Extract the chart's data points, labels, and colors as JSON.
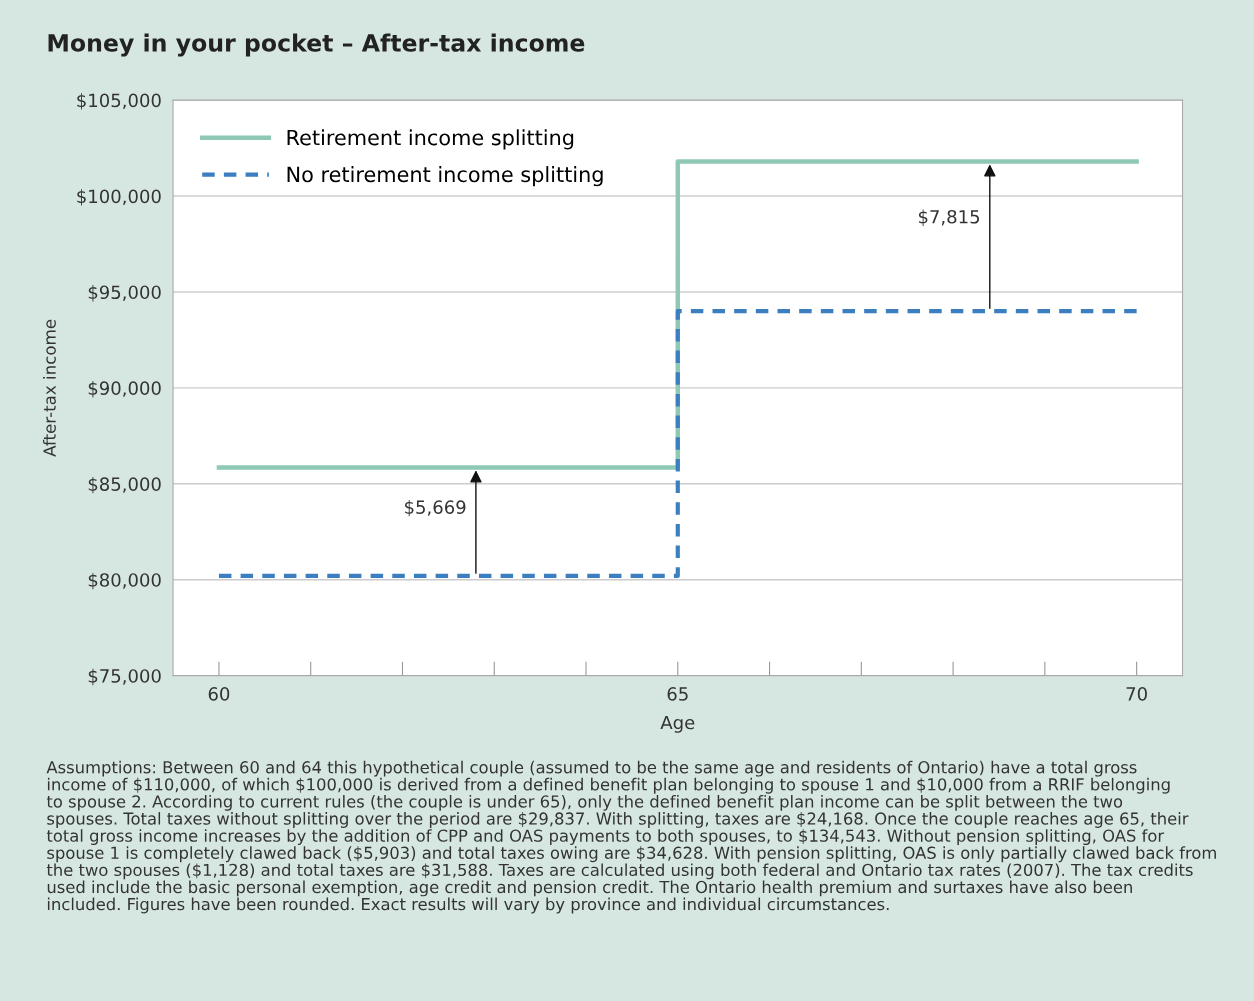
{
  "chart_data": {
    "type": "step",
    "title": "Money in your pocket – After-tax income",
    "xlabel": "Age",
    "ylabel": "After-tax income",
    "x": [
      60,
      65,
      70
    ],
    "series": [
      {
        "name": "Retirement income splitting",
        "color": "#8fc9b5",
        "values": [
          85850,
          101800,
          101800
        ],
        "line_style": "solid"
      },
      {
        "name": "No retirement income splitting",
        "color": "#3b7fc0",
        "values": [
          80200,
          94000,
          94000
        ],
        "line_style": "dashed"
      }
    ],
    "xlim": [
      59.5,
      70.5
    ],
    "xticks": [
      60,
      {
        "value": 61,
        "label": null
      },
      {
        "value": 62,
        "label": null
      },
      {
        "value": 63,
        "label": null
      },
      {
        "value": 64,
        "label": null
      },
      65,
      {
        "value": 66,
        "label": null
      },
      {
        "value": 67,
        "label": null
      },
      {
        "value": 68,
        "label": null
      },
      {
        "value": 69,
        "label": null
      },
      70
    ],
    "ylim": [
      75000,
      105000
    ],
    "yticks": [
      {
        "value": 75000,
        "label": "$75,000"
      },
      {
        "value": 80000,
        "label": "$80,000"
      },
      {
        "value": 85000,
        "label": "$85,000"
      },
      {
        "value": 90000,
        "label": "$90,000"
      },
      {
        "value": 95000,
        "label": "$95,000"
      },
      {
        "value": 100000,
        "label": "$100,000"
      },
      {
        "value": 105000,
        "label": "$105,000"
      }
    ],
    "grid": "y",
    "legend": "top left",
    "marker": "none",
    "annotations": [
      {
        "text": "$5,669",
        "x": 62.8,
        "y": 85850
      },
      {
        "text": "$7,815",
        "x": 68.4,
        "y": 101800
      },
      "Assumptions: Between 60 and 64 this hypothetical couple (assumed to be the same age and residents of Ontario) have a total gross income of $110,000, of which $100,000 is derived from a defined benefit plan belonging to spouse 1 and $10,000 from a RRIF belonging to spouse 2. According to current rules (the couple is under 65), only the defined benefit plan income can be split between the two spouses. Total taxes without splitting over the period are $29,837. With splitting, taxes are $24,168. Once the couple reaches age 65, their total gross income increases by the addition of CPP and OAS payments to both spouses, to $134,543. Without pension splitting, OAS for spouse 1 is completely clawed back ($5,903) and total taxes owing are $34,628. With pension splitting, OAS is only partially clawed back from the two spouses ($1,128) and total taxes are $31,588. Taxes are calculated using both federal and Ontario tax rates (2007). The tax credits used include the basic personal exemption, age credit and pension credit. The Ontario health premium and surtaxes have also been included. Figures have been rounded. Exact results will vary by province and individual circumstances."
    ]
  }
}
